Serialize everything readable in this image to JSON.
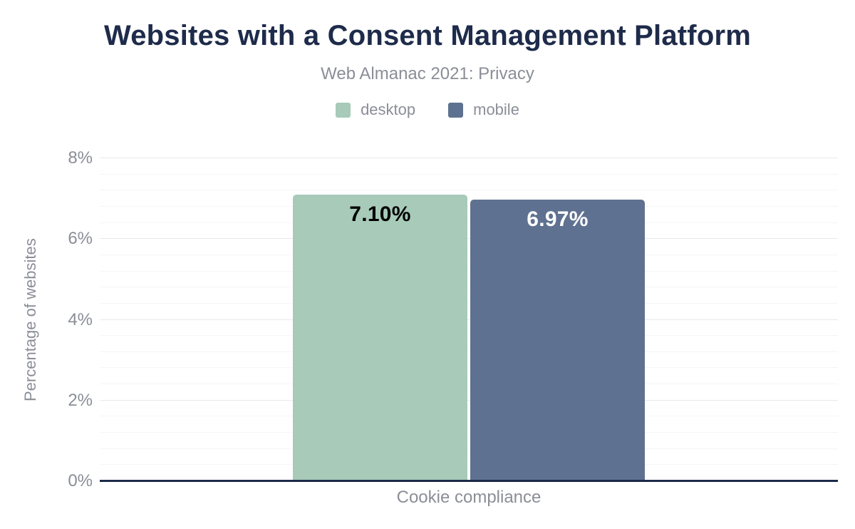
{
  "header": {
    "title": "Websites with a Consent Management Platform",
    "subtitle": "Web Almanac 2021: Privacy"
  },
  "colors": {
    "background": "#ffffff",
    "title_text": "#1e2b4a",
    "muted_text": "#8b8e97",
    "axis_line": "#1b2a49",
    "grid_major": "#e8e8ec",
    "grid_minor": "#f5f5f7",
    "desktop": "#a7cab9",
    "mobile": "#5f7190"
  },
  "chart_data": {
    "type": "bar",
    "title": "Websites with a Consent Management Platform",
    "subtitle": "Web Almanac 2021: Privacy",
    "categories": [
      "Cookie compliance"
    ],
    "series": [
      {
        "name": "desktop",
        "values": [
          7.1
        ],
        "data_labels": [
          "7.10%"
        ],
        "color": "#a7cab9",
        "label_color": "#000000"
      },
      {
        "name": "mobile",
        "values": [
          6.97
        ],
        "data_labels": [
          "6.97%"
        ],
        "color": "#5f7190",
        "label_color": "#ffffff"
      }
    ],
    "xlabel": "Cookie compliance",
    "ylabel": "Percentage of websites",
    "ylim": [
      0,
      8
    ],
    "ytick_labels": [
      "0%",
      "2%",
      "4%",
      "6%",
      "8%"
    ],
    "ytick_step_major": 2,
    "ytick_step_minor": 0.4,
    "grid": true,
    "legend_position": "top"
  }
}
